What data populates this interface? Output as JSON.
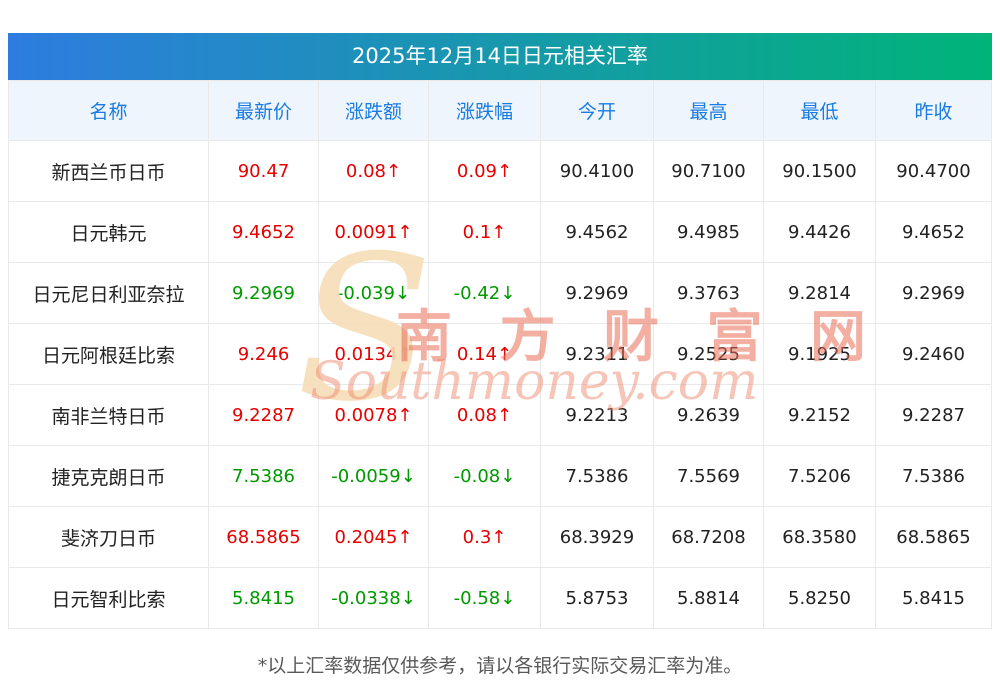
{
  "page": {
    "title": "2025年12月14日日元相关汇率",
    "footer_note": "*以上汇率数据仅供参考，请以各银行实际交易汇率为准。"
  },
  "watermark": {
    "s_glyph": "S",
    "cn": "南 方 财 富 网",
    "en": "Southmoney.com"
  },
  "colors": {
    "up": "#e60000",
    "down": "#009900",
    "header_text": "#1a7ce2",
    "header_bg": "#eef5fd",
    "title_gradient_start": "#2e7ce0",
    "title_gradient_end": "#00b478"
  },
  "chart_data": {
    "type": "table",
    "title": "2025年12月14日日元相关汇率",
    "columns": [
      "名称",
      "最新价",
      "涨跌额",
      "涨跌幅",
      "今开",
      "最高",
      "最低",
      "昨收"
    ],
    "colored_columns": [
      1,
      2,
      3
    ],
    "rows": [
      {
        "cells": [
          "新西兰币日币",
          "90.47",
          "0.08↑",
          "0.09↑",
          "90.4100",
          "90.7100",
          "90.1500",
          "90.4700"
        ],
        "trend": "up"
      },
      {
        "cells": [
          "日元韩元",
          "9.4652",
          "0.0091↑",
          "0.1↑",
          "9.4562",
          "9.4985",
          "9.4426",
          "9.4652"
        ],
        "trend": "up"
      },
      {
        "cells": [
          "日元尼日利亚奈拉",
          "9.2969",
          "-0.039↓",
          "-0.42↓",
          "9.2969",
          "9.3763",
          "9.2814",
          "9.2969"
        ],
        "trend": "down"
      },
      {
        "cells": [
          "日元阿根廷比索",
          "9.246",
          "0.0134↑",
          "0.14↑",
          "9.2311",
          "9.2525",
          "9.1925",
          "9.2460"
        ],
        "trend": "up"
      },
      {
        "cells": [
          "南非兰特日币",
          "9.2287",
          "0.0078↑",
          "0.08↑",
          "9.2213",
          "9.2639",
          "9.2152",
          "9.2287"
        ],
        "trend": "up"
      },
      {
        "cells": [
          "捷克克朗日币",
          "7.5386",
          "-0.0059↓",
          "-0.08↓",
          "7.5386",
          "7.5569",
          "7.5206",
          "7.5386"
        ],
        "trend": "down"
      },
      {
        "cells": [
          "斐济刀日币",
          "68.5865",
          "0.2045↑",
          "0.3↑",
          "68.3929",
          "68.7208",
          "68.3580",
          "68.5865"
        ],
        "trend": "up"
      },
      {
        "cells": [
          "日元智利比索",
          "5.8415",
          "-0.0338↓",
          "-0.58↓",
          "5.8753",
          "5.8814",
          "5.8250",
          "5.8415"
        ],
        "trend": "down"
      }
    ]
  }
}
